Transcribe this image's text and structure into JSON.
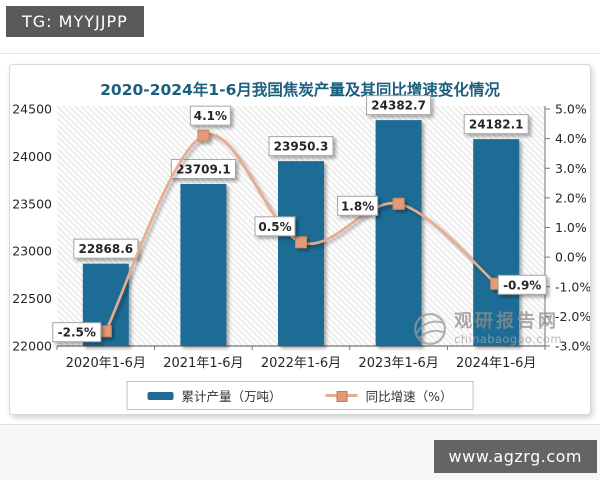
{
  "header": {
    "tg_badge": "TG: MYYJJPP"
  },
  "footer": {
    "site": "www.agzrg.com"
  },
  "watermark": {
    "brand": "观研报告网",
    "domain": "chinabaogao.com"
  },
  "colors": {
    "bar": "#1e6c96",
    "line": "#e9aa8f",
    "marker": "#e29a77",
    "marker_border": "#cf8a64",
    "title": "#1b5e7d",
    "axis": "#737373",
    "text": "#262626",
    "label_box_border": "#a6a6a6"
  },
  "chart_data": {
    "type": "combo: bar (left axis) + line (right axis)",
    "title": "2020-2024年1-6月我国焦炭产量及其同比增速变化情况",
    "categories": [
      "2020年1-6月",
      "2021年1-6月",
      "2022年1-6月",
      "2023年1-6月",
      "2024年1-6月"
    ],
    "series": [
      {
        "name": "累计产量（万吨）",
        "type": "bar",
        "axis": "left",
        "values": [
          22868.6,
          23709.1,
          23950.3,
          24382.7,
          24182.1
        ],
        "labels": [
          "22868.6",
          "23709.1",
          "23950.3",
          "24382.7",
          "24182.1"
        ]
      },
      {
        "name": "同比增速（%）",
        "type": "line",
        "axis": "right",
        "values": [
          -2.5,
          4.1,
          0.5,
          1.8,
          -0.9
        ],
        "labels": [
          "-2.5%",
          "4.1%",
          "0.5%",
          "1.8%",
          "-0.9%"
        ]
      }
    ],
    "left_axis": {
      "min": 22000,
      "max": 24500,
      "step": 500,
      "tick_labels": [
        "24500",
        "24000",
        "23500",
        "23000",
        "22500",
        "22000"
      ]
    },
    "right_axis": {
      "min": -3,
      "max": 5,
      "step": 1,
      "tick_labels": [
        "5.0%",
        "4.0%",
        "3.0%",
        "2.0%",
        "1.0%",
        "0.0%",
        "-1.0%",
        "-2.0%",
        "-3.0%"
      ]
    },
    "legend_position": "bottom",
    "grid": "hatched plot background, no gridlines"
  }
}
